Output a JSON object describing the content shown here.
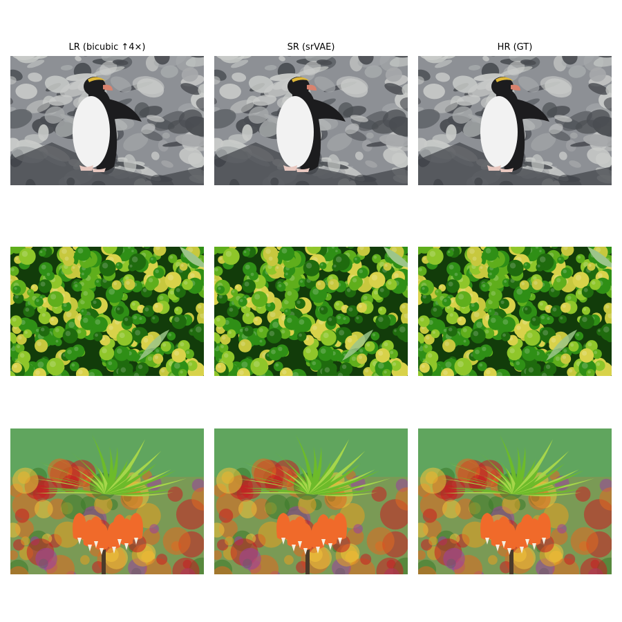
{
  "columns": [
    {
      "title": "LR (bicubic ↑4×)"
    },
    {
      "title": "SR (srVAE)"
    },
    {
      "title": "HR (GT)"
    }
  ],
  "rows": [
    {
      "subject": "penguin-on-rocks",
      "colors": {
        "rock_light": "#c9cbc9",
        "rock_dark": "#4a4d52",
        "body_white": "#f2f2f2",
        "body_black": "#1c1c1e",
        "beak": "#d9826e",
        "crest": "#e0b93a"
      }
    },
    {
      "subject": "citrus-fruits",
      "colors": {
        "bg": "#123c0a",
        "green": "#2f8f16",
        "lime": "#8fc62a",
        "yellow": "#d8d24a",
        "leaf": "#9cc58a"
      }
    },
    {
      "subject": "crown-imperial-flower",
      "colors": {
        "sky": "#5aa860",
        "blur_red": "#c81e22",
        "blur_yellow": "#e8a020",
        "blur_purple": "#9b3fa0",
        "leaves": "#6dbb2a",
        "petals": "#f06a2a"
      }
    }
  ]
}
